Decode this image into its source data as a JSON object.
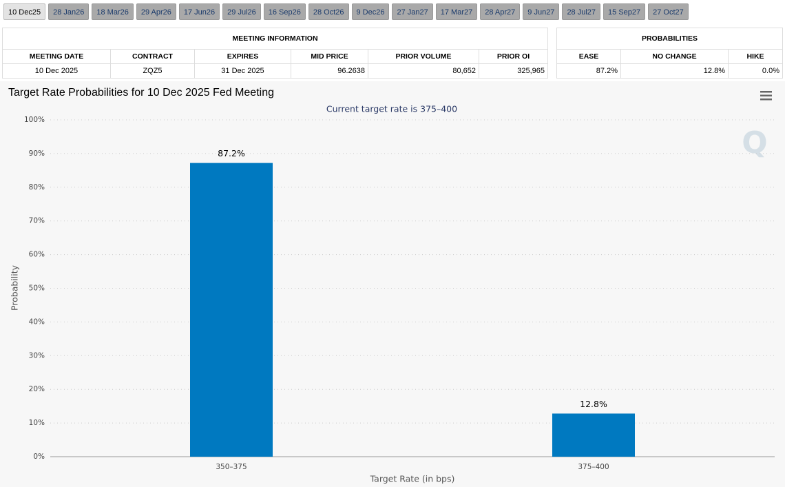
{
  "tabs": [
    "10 Dec25",
    "28 Jan26",
    "18 Mar26",
    "29 Apr26",
    "17 Jun26",
    "29 Jul26",
    "16 Sep26",
    "28 Oct26",
    "9 Dec26",
    "27 Jan27",
    "17 Mar27",
    "28 Apr27",
    "9 Jun27",
    "28 Jul27",
    "15 Sep27",
    "27 Oct27"
  ],
  "meeting_table": {
    "title": "MEETING INFORMATION",
    "columns": [
      "MEETING DATE",
      "CONTRACT",
      "EXPIRES",
      "MID PRICE",
      "PRIOR VOLUME",
      "PRIOR OI"
    ],
    "rows": [
      [
        "10 Dec 2025",
        "ZQZ5",
        "31 Dec 2025",
        "96.2638",
        "80,652",
        "325,965"
      ]
    ]
  },
  "probability_table": {
    "title": "PROBABILITIES",
    "columns": [
      "EASE",
      "NO CHANGE",
      "HIKE"
    ],
    "rows": [
      [
        "87.2%",
        "12.8%",
        "0.0%"
      ]
    ]
  },
  "chart_data": {
    "type": "bar",
    "title": "Target Rate Probabilities for 10 Dec 2025 Fed Meeting",
    "subtitle": "Current target rate is 375–400",
    "xlabel": "Target Rate (in bps)",
    "ylabel": "Probability",
    "categories": [
      "350–375",
      "375–400"
    ],
    "values": [
      87.2,
      12.8
    ],
    "value_labels": [
      "87.2%",
      "12.8%"
    ],
    "color": "#0079c0",
    "ylim": [
      0,
      100
    ],
    "yticks": [
      {
        "value": 0,
        "label": "0%"
      },
      {
        "value": 10,
        "label": "10%"
      },
      {
        "value": 20,
        "label": "20%"
      },
      {
        "value": 30,
        "label": "30%"
      },
      {
        "value": 40,
        "label": "40%"
      },
      {
        "value": 50,
        "label": "50%"
      },
      {
        "value": 60,
        "label": "60%"
      },
      {
        "value": 70,
        "label": "70%"
      },
      {
        "value": 80,
        "label": "80%"
      },
      {
        "value": 90,
        "label": "90%"
      },
      {
        "value": 100,
        "label": "100%"
      }
    ],
    "grid": true
  }
}
